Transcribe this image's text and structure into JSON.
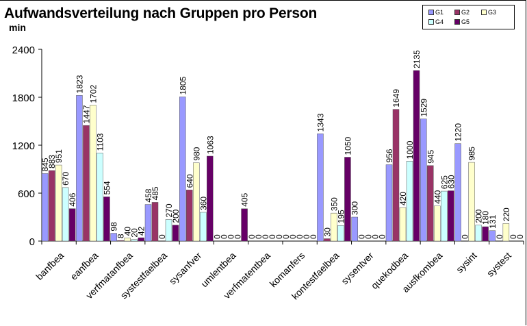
{
  "chart_data": {
    "type": "bar",
    "title": "Aufwandsverteilung nach Gruppen pro Person",
    "ylabel": "min",
    "xlabel": "",
    "ylim": [
      0,
      2400
    ],
    "yticks": [
      0,
      600,
      1200,
      1800,
      2400
    ],
    "ytick_labels": [
      "0",
      "600",
      "1200",
      "1800",
      "2400"
    ],
    "grid": false,
    "legend_position": "top-right",
    "categories": [
      "banfbea",
      "eanfbea",
      "verfmatanfbea",
      "systestfaelbea",
      "sysanfver",
      "umlentbea",
      "verfmatentbea",
      "komanfers",
      "kontestfaelbea",
      "sysentver",
      "quekodbea",
      "ausfkombea",
      "sysint",
      "systest"
    ],
    "series": [
      {
        "name": "G1",
        "color": "#9999ff",
        "values": [
          845,
          1823,
          98,
          458,
          1805,
          0,
          0,
          0,
          1343,
          300,
          956,
          1529,
          1220,
          131
        ]
      },
      {
        "name": "G2",
        "color": "#993366",
        "values": [
          883,
          1447,
          8,
          485,
          640,
          0,
          0,
          0,
          30,
          0,
          1649,
          945,
          0,
          0
        ]
      },
      {
        "name": "G3",
        "color": "#ffffcc",
        "values": [
          951,
          1702,
          40,
          0,
          980,
          0,
          0,
          0,
          350,
          0,
          420,
          440,
          985,
          220
        ]
      },
      {
        "name": "G4",
        "color": "#ccffff",
        "values": [
          670,
          1103,
          20,
          270,
          360,
          0,
          0,
          0,
          195,
          0,
          1000,
          625,
          200,
          0
        ]
      },
      {
        "name": "G5",
        "color": "#660066",
        "values": [
          406,
          554,
          42,
          200,
          1063,
          405,
          0,
          0,
          1050,
          0,
          2135,
          630,
          180,
          0
        ]
      }
    ]
  }
}
